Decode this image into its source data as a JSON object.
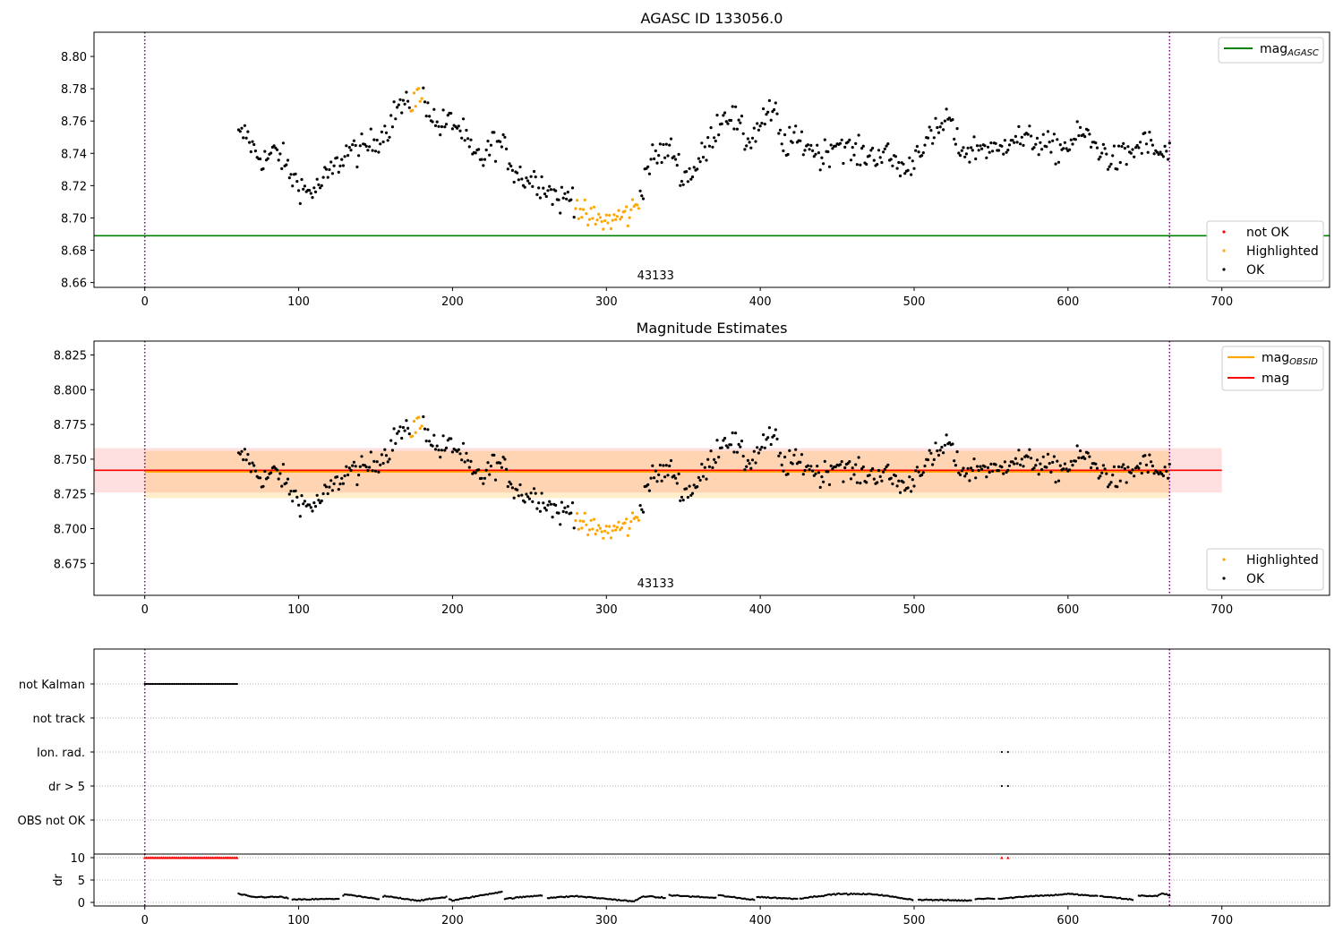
{
  "chart_data": [
    {
      "panel": "top",
      "type": "scatter",
      "title": "AGASC ID 133056.0",
      "xlim": [
        -33,
        770
      ],
      "ylim": [
        8.657,
        8.815
      ],
      "xticks": [
        0,
        100,
        200,
        300,
        400,
        500,
        600,
        700
      ],
      "yticks": [
        8.66,
        8.68,
        8.7,
        8.72,
        8.74,
        8.76,
        8.78,
        8.8
      ],
      "ytick_labels": [
        "8.66",
        "8.68",
        "8.70",
        "8.72",
        "8.74",
        "8.76",
        "8.78",
        "8.80"
      ],
      "obsid_label": {
        "text": "43133",
        "x": 332
      },
      "obsid_bounds": [
        0,
        666
      ],
      "mag_agasc": 8.689,
      "legend_lines": [
        {
          "label": "mag",
          "sub": "AGASC",
          "color": "#008000"
        }
      ],
      "legend_points": [
        {
          "label": "not OK",
          "color": "#ff0000"
        },
        {
          "label": "Highlighted",
          "color": "#ffa500"
        },
        {
          "label": "OK",
          "color": "#000000"
        }
      ],
      "legend_position": "upper-right / lower-right"
    },
    {
      "panel": "middle",
      "type": "scatter",
      "title": "Magnitude Estimates",
      "xlim": [
        -33,
        770
      ],
      "ylim": [
        8.652,
        8.835
      ],
      "xticks": [
        0,
        100,
        200,
        300,
        400,
        500,
        600,
        700
      ],
      "yticks": [
        8.675,
        8.7,
        8.725,
        8.75,
        8.775,
        8.8,
        8.825
      ],
      "ytick_labels": [
        "8.675",
        "8.700",
        "8.725",
        "8.750",
        "8.775",
        "8.800",
        "8.825"
      ],
      "obsid_label": {
        "text": "43133",
        "x": 332
      },
      "obsid_bounds": [
        0,
        666
      ],
      "mag_obsid": {
        "value": 8.741,
        "x0": 0,
        "x1": 666,
        "band": [
          8.722,
          8.756
        ]
      },
      "mag": {
        "value": 8.742,
        "x0": -33,
        "x1": 700,
        "band": [
          8.726,
          8.758
        ]
      },
      "legend_lines": [
        {
          "label": "mag",
          "sub": "OBSID",
          "color": "#ffa500"
        },
        {
          "label": "mag",
          "sub": "",
          "color": "#ff0000"
        }
      ],
      "legend_points": [
        {
          "label": "Highlighted",
          "color": "#ffa500"
        },
        {
          "label": "OK",
          "color": "#000000"
        }
      ],
      "legend_position": "upper-right / lower-right"
    },
    {
      "panel": "flags",
      "type": "scatter",
      "categories": [
        "not Kalman",
        "not track",
        "Ion. rad.",
        "dr > 5",
        "OBS not OK"
      ],
      "events": [
        {
          "flag": "not Kalman",
          "x_start": 0,
          "x_end": 60
        },
        {
          "flag": "Ion. rad.",
          "x_values": [
            557,
            561
          ]
        },
        {
          "flag": "dr > 5",
          "x_values": [
            557,
            561
          ]
        }
      ],
      "xlim": [
        -33,
        770
      ]
    },
    {
      "panel": "dr",
      "type": "scatter",
      "ylabel": "dr",
      "yticks": [
        0,
        5,
        10
      ],
      "ytick_labels": [
        "0",
        "5",
        "10"
      ],
      "ylim": [
        -0.8,
        10.8
      ],
      "xlim": [
        -33,
        770
      ],
      "xticks": [
        0,
        100,
        200,
        300,
        400,
        500,
        600,
        700
      ],
      "clipped": [
        {
          "x_start": 0,
          "x_end": 60,
          "value": 10
        },
        {
          "x_values": [
            557,
            561
          ],
          "value": 10
        }
      ],
      "dr_range": [
        0.3,
        2.6
      ]
    }
  ],
  "magnitude_series": {
    "x_start": 61,
    "x_end": 666,
    "step": 1,
    "knots": [
      [
        61,
        8.75
      ],
      [
        66,
        8.752
      ],
      [
        72,
        8.74
      ],
      [
        78,
        8.736
      ],
      [
        85,
        8.741
      ],
      [
        90,
        8.736
      ],
      [
        95,
        8.726
      ],
      [
        100,
        8.722
      ],
      [
        105,
        8.716
      ],
      [
        112,
        8.718
      ],
      [
        118,
        8.725
      ],
      [
        125,
        8.733
      ],
      [
        132,
        8.742
      ],
      [
        140,
        8.741
      ],
      [
        150,
        8.748
      ],
      [
        158,
        8.756
      ],
      [
        165,
        8.77
      ],
      [
        170,
        8.768
      ],
      [
        176,
        8.775
      ],
      [
        182,
        8.774
      ],
      [
        190,
        8.757
      ],
      [
        200,
        8.76
      ],
      [
        207,
        8.752
      ],
      [
        213,
        8.738
      ],
      [
        220,
        8.737
      ],
      [
        227,
        8.747
      ],
      [
        233,
        8.744
      ],
      [
        240,
        8.73
      ],
      [
        248,
        8.724
      ],
      [
        255,
        8.724
      ],
      [
        262,
        8.718
      ],
      [
        270,
        8.711
      ],
      [
        278,
        8.714
      ],
      [
        286,
        8.7
      ],
      [
        293,
        8.699
      ],
      [
        300,
        8.698
      ],
      [
        307,
        8.7
      ],
      [
        315,
        8.703
      ],
      [
        320,
        8.708
      ],
      [
        327,
        8.733
      ],
      [
        335,
        8.74
      ],
      [
        343,
        8.742
      ],
      [
        350,
        8.725
      ],
      [
        357,
        8.73
      ],
      [
        365,
        8.742
      ],
      [
        372,
        8.758
      ],
      [
        378,
        8.766
      ],
      [
        384,
        8.76
      ],
      [
        390,
        8.748
      ],
      [
        395,
        8.75
      ],
      [
        402,
        8.762
      ],
      [
        410,
        8.765
      ],
      [
        414,
        8.744
      ],
      [
        420,
        8.748
      ],
      [
        430,
        8.746
      ],
      [
        440,
        8.738
      ],
      [
        450,
        8.748
      ],
      [
        460,
        8.74
      ],
      [
        470,
        8.739
      ],
      [
        480,
        8.74
      ],
      [
        490,
        8.733
      ],
      [
        496,
        8.729
      ],
      [
        503,
        8.744
      ],
      [
        510,
        8.748
      ],
      [
        516,
        8.754
      ],
      [
        522,
        8.763
      ],
      [
        528,
        8.745
      ],
      [
        535,
        8.741
      ],
      [
        545,
        8.745
      ],
      [
        555,
        8.74
      ],
      [
        563,
        8.752
      ],
      [
        570,
        8.748
      ],
      [
        580,
        8.748
      ],
      [
        590,
        8.742
      ],
      [
        600,
        8.745
      ],
      [
        610,
        8.753
      ],
      [
        617,
        8.745
      ],
      [
        624,
        8.74
      ],
      [
        630,
        8.735
      ],
      [
        640,
        8.74
      ],
      [
        650,
        8.747
      ],
      [
        660,
        8.739
      ],
      [
        666,
        8.74
      ]
    ],
    "highlighted_x_range": [
      280,
      321
    ],
    "highlighted_extra_x": [
      173,
      174,
      175,
      176,
      177,
      178,
      179,
      180
    ]
  },
  "dr_series": {
    "segments": [
      [
        61,
        93
      ],
      [
        96,
        126
      ],
      [
        129,
        152
      ],
      [
        155,
        196
      ],
      [
        198,
        232
      ],
      [
        234,
        258
      ],
      [
        262,
        338
      ],
      [
        341,
        371
      ],
      [
        373,
        396
      ],
      [
        398,
        424
      ],
      [
        426,
        499
      ],
      [
        503,
        537
      ],
      [
        540,
        552
      ],
      [
        555,
        619
      ],
      [
        621,
        642
      ],
      [
        646,
        666
      ]
    ],
    "knots": [
      [
        61,
        1.9
      ],
      [
        70,
        1.2
      ],
      [
        90,
        1.2
      ],
      [
        96,
        0.6
      ],
      [
        126,
        0.8
      ],
      [
        130,
        1.8
      ],
      [
        152,
        0.7
      ],
      [
        156,
        1.4
      ],
      [
        178,
        0.4
      ],
      [
        196,
        1.2
      ],
      [
        200,
        0.4
      ],
      [
        232,
        2.4
      ],
      [
        234,
        0.8
      ],
      [
        258,
        1.6
      ],
      [
        262,
        1.0
      ],
      [
        280,
        1.4
      ],
      [
        300,
        0.8
      ],
      [
        318,
        0.2
      ],
      [
        324,
        1.4
      ],
      [
        338,
        1.0
      ],
      [
        341,
        1.6
      ],
      [
        371,
        1.0
      ],
      [
        373,
        1.6
      ],
      [
        385,
        1.0
      ],
      [
        396,
        0.6
      ],
      [
        398,
        1.2
      ],
      [
        424,
        0.8
      ],
      [
        426,
        0.9
      ],
      [
        450,
        1.9
      ],
      [
        475,
        1.8
      ],
      [
        499,
        0.6
      ],
      [
        503,
        0.6
      ],
      [
        537,
        0.4
      ],
      [
        540,
        0.8
      ],
      [
        552,
        0.9
      ],
      [
        555,
        0.8
      ],
      [
        575,
        1.4
      ],
      [
        590,
        1.6
      ],
      [
        600,
        1.9
      ],
      [
        619,
        1.4
      ],
      [
        621,
        1.4
      ],
      [
        642,
        0.6
      ],
      [
        646,
        1.5
      ],
      [
        658,
        1.4
      ],
      [
        661,
        2.0
      ],
      [
        666,
        1.6
      ]
    ]
  }
}
